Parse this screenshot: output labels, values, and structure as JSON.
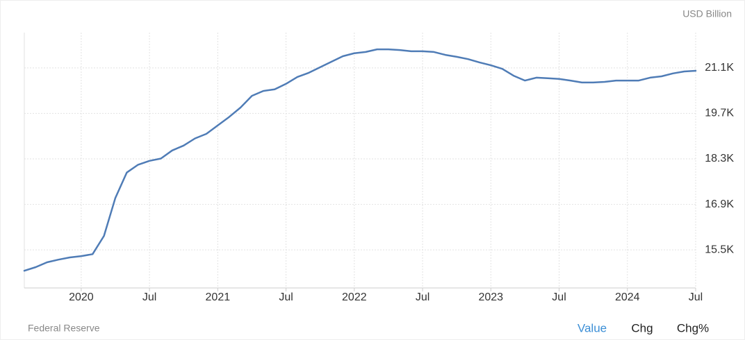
{
  "chart_data": {
    "type": "line",
    "unit_label": "USD Billion",
    "source": "Federal Reserve",
    "tabs": [
      "Value",
      "Chg",
      "Chg%"
    ],
    "color": "#4f7cb6",
    "grid": true,
    "x": [
      "2019-08",
      "2019-09",
      "2019-10",
      "2019-11",
      "2019-12",
      "2020-01",
      "2020-02",
      "2020-03",
      "2020-04",
      "2020-05",
      "2020-06",
      "2020-07",
      "2020-08",
      "2020-09",
      "2020-10",
      "2020-11",
      "2020-12",
      "2021-01",
      "2021-02",
      "2021-03",
      "2021-04",
      "2021-05",
      "2021-06",
      "2021-07",
      "2021-08",
      "2021-09",
      "2021-10",
      "2021-11",
      "2021-12",
      "2022-01",
      "2022-02",
      "2022-03",
      "2022-04",
      "2022-05",
      "2022-06",
      "2022-07",
      "2022-08",
      "2022-09",
      "2022-10",
      "2022-11",
      "2022-12",
      "2023-01",
      "2023-02",
      "2023-03",
      "2023-04",
      "2023-05",
      "2023-06",
      "2023-07",
      "2023-08",
      "2023-09",
      "2023-10",
      "2023-11",
      "2023-12",
      "2024-01",
      "2024-02",
      "2024-03",
      "2024-04",
      "2024-05",
      "2024-06",
      "2024-07"
    ],
    "values": [
      14860,
      14970,
      15120,
      15200,
      15270,
      15310,
      15370,
      15930,
      17100,
      17880,
      18120,
      18240,
      18310,
      18560,
      18710,
      18930,
      19070,
      19330,
      19590,
      19880,
      20240,
      20390,
      20440,
      20610,
      20820,
      20950,
      21120,
      21290,
      21460,
      21550,
      21590,
      21670,
      21670,
      21650,
      21610,
      21610,
      21590,
      21500,
      21440,
      21370,
      21270,
      21180,
      21070,
      20860,
      20710,
      20800,
      20780,
      20760,
      20710,
      20650,
      20650,
      20670,
      20710,
      20710,
      20710,
      20800,
      20840,
      20930,
      20990,
      21010
    ],
    "xlim": [
      "2019-08",
      "2024-07"
    ],
    "xticks": [
      {
        "value": "2020-01",
        "label": "2020"
      },
      {
        "value": "2020-07",
        "label": "Jul"
      },
      {
        "value": "2021-01",
        "label": "2021"
      },
      {
        "value": "2021-07",
        "label": "Jul"
      },
      {
        "value": "2022-01",
        "label": "2022"
      },
      {
        "value": "2022-07",
        "label": "Jul"
      },
      {
        "value": "2023-01",
        "label": "2023"
      },
      {
        "value": "2023-07",
        "label": "Jul"
      },
      {
        "value": "2024-01",
        "label": "2024"
      },
      {
        "value": "2024-07",
        "label": "Jul"
      }
    ],
    "ylim": [
      14330,
      22185
    ],
    "yticks": [
      {
        "value": 15500,
        "label": "15.5K"
      },
      {
        "value": 16900,
        "label": "16.9K"
      },
      {
        "value": 18300,
        "label": "18.3K"
      },
      {
        "value": 19700,
        "label": "19.7K"
      },
      {
        "value": 21100,
        "label": "21.1K"
      }
    ]
  }
}
